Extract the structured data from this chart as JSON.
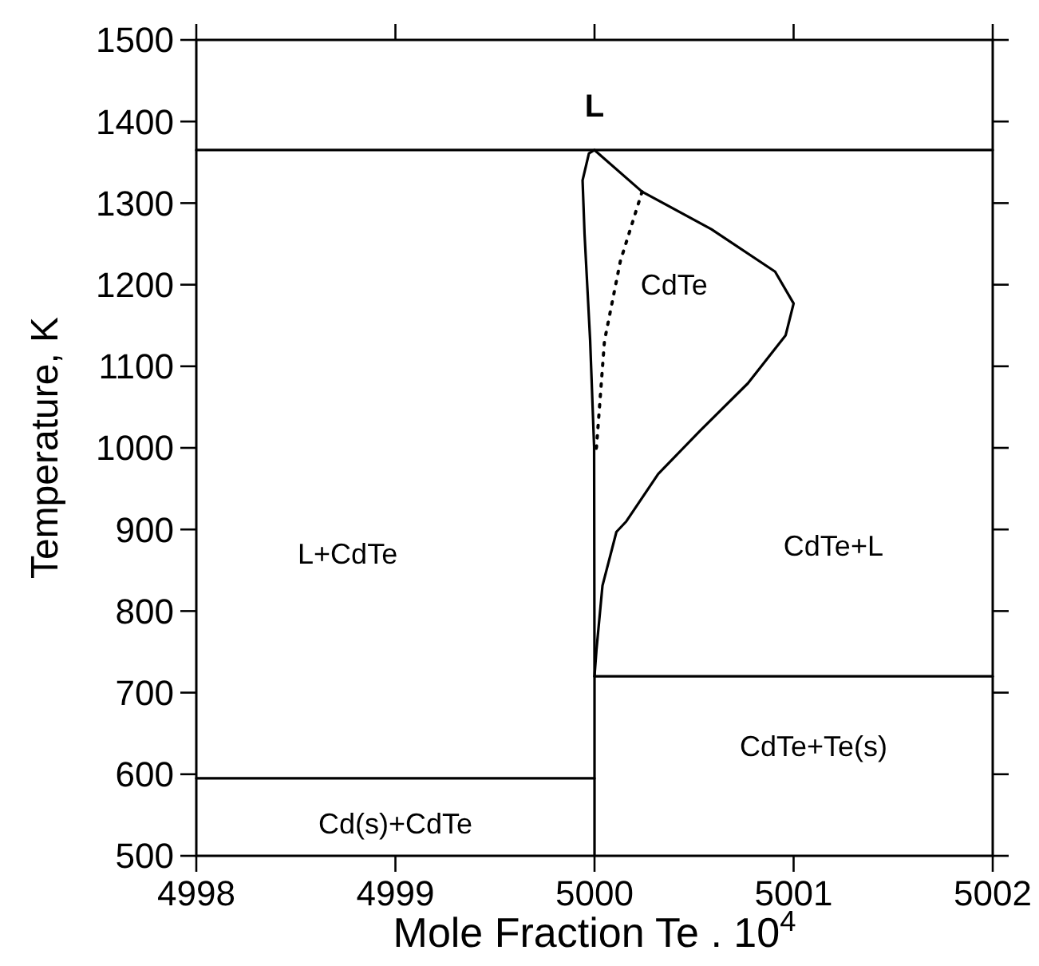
{
  "chart_data": {
    "type": "line",
    "xlabel": "Mole Fraction Te . 10$^{4}$",
    "ylabel": "Temperature, K",
    "xlim": [
      4998,
      5002
    ],
    "xticks": [
      4998,
      4999,
      5000,
      5001,
      5002
    ],
    "ylim": [
      500,
      1500
    ],
    "yticks": [
      500,
      600,
      700,
      800,
      900,
      1000,
      1100,
      1200,
      1300,
      1400,
      1500
    ],
    "grid": false,
    "marker": "none",
    "line_style": "solid",
    "series": [
      {
        "color": "#000000",
        "x": [
          4998,
          5002
        ],
        "values": [
          1365,
          1365
        ]
      },
      {
        "color": "#000000",
        "x": [
          4998,
          5000
        ],
        "values": [
          595,
          595
        ]
      },
      {
        "color": "#000000",
        "x": [
          5000,
          5002
        ],
        "values": [
          720,
          720
        ]
      },
      {
        "color": "#000000",
        "x": [
          5000,
          4999.972,
          4999.94,
          4999.95,
          4999.978,
          4999.998,
          5000,
          5000
        ],
        "values": [
          1365,
          1361,
          1328,
          1262,
          1132,
          1001,
          720,
          500
        ]
      },
      {
        "color": "#000000",
        "x": [
          5000,
          5000.239,
          5000.587,
          5000.907,
          5001.0,
          5000.96,
          5000.77,
          5000.53,
          5000.32,
          5000.16,
          5000.11,
          5000.04,
          5000.01,
          5000
        ],
        "values": [
          1365,
          1314,
          1268,
          1216,
          1177,
          1138,
          1079,
          1021,
          968,
          910,
          897,
          831,
          753,
          720
        ]
      },
      {
        "color": "#000000",
        "line_style": "dotted",
        "x": [
          5000.239,
          5000.13,
          5000.05,
          5000.01,
          5000.0
        ],
        "values": [
          1314,
          1229,
          1131,
          1001,
          990
        ]
      }
    ],
    "annotations": [
      "L",
      "CdTe",
      "L+CdTe",
      "CdTe+L",
      "CdTe+Te(s)",
      "Cd(s)+CdTe"
    ]
  }
}
